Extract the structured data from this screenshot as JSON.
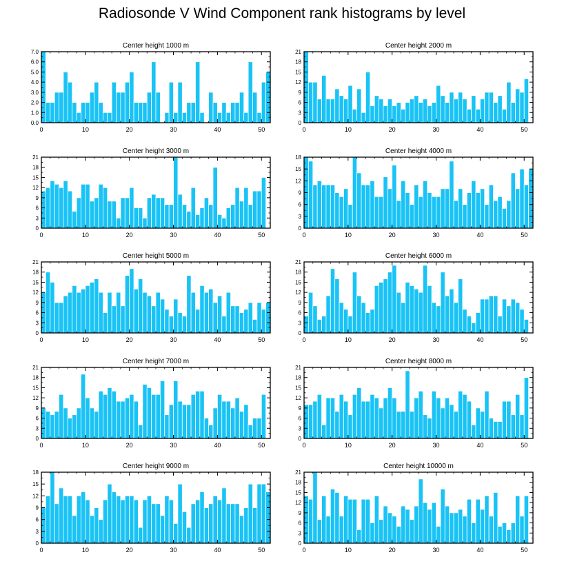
{
  "title": "Radiosonde V Wind Component rank histograms by level",
  "colors": {
    "bar": "#1ac3f5",
    "bar_edge": "#ffffff",
    "axis": "#000000"
  },
  "chart_data": [
    {
      "type": "bar",
      "title": "Center height 1000 m",
      "xlim": [
        0,
        52
      ],
      "ylim": [
        0,
        7
      ],
      "yticks": [
        "0.0",
        "1.0",
        "2.0",
        "3.0",
        "4.0",
        "5.0",
        "6.0",
        "7.0"
      ],
      "xticks": [
        "0",
        "10",
        "20",
        "30",
        "40",
        "50"
      ],
      "values": [
        7,
        2,
        2,
        3,
        3,
        5,
        4,
        2,
        1,
        2,
        2,
        3,
        4,
        2,
        1,
        1,
        4,
        3,
        3,
        4,
        5,
        2,
        2,
        2,
        3,
        6,
        3,
        0,
        1,
        4,
        1,
        4,
        1,
        2,
        2,
        6,
        1,
        0,
        3,
        2,
        1,
        2,
        1,
        2,
        2,
        3,
        1,
        6,
        3,
        1,
        4,
        5
      ]
    },
    {
      "type": "bar",
      "title": "Center height 2000 m",
      "xlim": [
        0,
        52
      ],
      "ylim": [
        0,
        21
      ],
      "yticks": [
        "0",
        "3",
        "6",
        "9",
        "12",
        "15",
        "18",
        "21"
      ],
      "xticks": [
        "0",
        "10",
        "20",
        "30",
        "40",
        "50"
      ],
      "values": [
        21,
        12,
        12,
        7,
        14,
        7,
        7,
        10,
        8,
        7,
        11,
        4,
        10,
        3,
        15,
        5,
        8,
        7,
        5,
        7,
        5,
        6,
        4,
        6,
        7,
        8,
        6,
        7,
        5,
        6,
        11,
        8,
        6,
        9,
        7,
        9,
        7,
        4,
        8,
        4,
        7,
        9,
        9,
        6,
        8,
        4,
        12,
        6,
        10,
        9,
        13
      ]
    },
    {
      "type": "bar",
      "title": "Center height 3000 m",
      "xlim": [
        0,
        52
      ],
      "ylim": [
        0,
        21
      ],
      "yticks": [
        "0",
        "3",
        "6",
        "9",
        "12",
        "15",
        "18",
        "21"
      ],
      "xticks": [
        "0",
        "10",
        "20",
        "30",
        "40",
        "50"
      ],
      "values": [
        11,
        12,
        14,
        13,
        12,
        14,
        11,
        5,
        9,
        13,
        13,
        8,
        9,
        13,
        12,
        8,
        8,
        3,
        9,
        9,
        12,
        6,
        6,
        3,
        9,
        10,
        9,
        9,
        7,
        7,
        21,
        10,
        7,
        5,
        12,
        4,
        6,
        9,
        7,
        18,
        4,
        3,
        6,
        7,
        12,
        8,
        12,
        7,
        11,
        11,
        15
      ]
    },
    {
      "type": "bar",
      "title": "Center height 4000 m",
      "xlim": [
        0,
        52
      ],
      "ylim": [
        0,
        18
      ],
      "yticks": [
        "0",
        "3",
        "6",
        "9",
        "12",
        "15",
        "18"
      ],
      "xticks": [
        "0",
        "10",
        "20",
        "30",
        "40",
        "50"
      ],
      "values": [
        18,
        17,
        11,
        12,
        11,
        11,
        11,
        9,
        8,
        10,
        6,
        18,
        14,
        11,
        11,
        12,
        8,
        8,
        13,
        10,
        16,
        7,
        12,
        9,
        6,
        11,
        8,
        12,
        9,
        8,
        8,
        10,
        10,
        17,
        7,
        10,
        6,
        9,
        12,
        9,
        10,
        6,
        11,
        7,
        8,
        5,
        7,
        14,
        10,
        15,
        11,
        15
      ]
    },
    {
      "type": "bar",
      "title": "Center height 5000 m",
      "xlim": [
        0,
        52
      ],
      "ylim": [
        0,
        21
      ],
      "yticks": [
        "0",
        "3",
        "6",
        "9",
        "12",
        "15",
        "18",
        "21"
      ],
      "xticks": [
        "0",
        "10",
        "20",
        "30",
        "40",
        "50"
      ],
      "values": [
        12,
        18,
        15,
        9,
        9,
        11,
        12,
        14,
        12,
        13,
        14,
        15,
        16,
        12,
        6,
        12,
        8,
        12,
        8,
        17,
        19,
        13,
        16,
        12,
        11,
        8,
        12,
        10,
        7,
        5,
        10,
        6,
        5,
        17,
        12,
        7,
        14,
        12,
        13,
        9,
        11,
        5,
        12,
        8,
        8,
        6,
        7,
        9,
        4,
        9,
        7,
        9
      ]
    },
    {
      "type": "bar",
      "title": "Center height 6000 m",
      "xlim": [
        0,
        52
      ],
      "ylim": [
        0,
        21
      ],
      "yticks": [
        "0",
        "3",
        "6",
        "9",
        "12",
        "15",
        "18",
        "21"
      ],
      "xticks": [
        "0",
        "10",
        "20",
        "30",
        "40",
        "50"
      ],
      "values": [
        5,
        12,
        8,
        4,
        5,
        11,
        19,
        16,
        9,
        7,
        5,
        18,
        11,
        9,
        6,
        7,
        14,
        15,
        16,
        18,
        20,
        12,
        9,
        15,
        14,
        13,
        12,
        20,
        14,
        9,
        8,
        18,
        11,
        13,
        9,
        16,
        7,
        5,
        3,
        6,
        10,
        10,
        11,
        11,
        5,
        10,
        8,
        10,
        9,
        7,
        4
      ]
    },
    {
      "type": "bar",
      "title": "Center height 7000 m",
      "xlim": [
        0,
        52
      ],
      "ylim": [
        0,
        21
      ],
      "yticks": [
        "0",
        "3",
        "6",
        "9",
        "12",
        "15",
        "18",
        "21"
      ],
      "xticks": [
        "0",
        "10",
        "20",
        "30",
        "40",
        "50"
      ],
      "values": [
        9,
        8,
        7,
        8,
        13,
        9,
        6,
        7,
        9,
        19,
        12,
        9,
        8,
        14,
        13,
        15,
        14,
        11,
        11,
        12,
        13,
        11,
        4,
        16,
        15,
        13,
        13,
        17,
        7,
        10,
        17,
        11,
        10,
        10,
        13,
        14,
        14,
        6,
        4,
        9,
        13,
        11,
        11,
        9,
        12,
        8,
        10,
        4,
        6,
        6,
        13
      ]
    },
    {
      "type": "bar",
      "title": "Center height 8000 m",
      "xlim": [
        0,
        52
      ],
      "ylim": [
        0,
        21
      ],
      "yticks": [
        "0",
        "3",
        "6",
        "9",
        "12",
        "15",
        "18",
        "21"
      ],
      "xticks": [
        "0",
        "10",
        "20",
        "30",
        "40",
        "50"
      ],
      "values": [
        10,
        10,
        11,
        13,
        4,
        12,
        12,
        8,
        13,
        11,
        7,
        13,
        15,
        11,
        11,
        13,
        12,
        9,
        12,
        15,
        12,
        8,
        8,
        20,
        8,
        12,
        14,
        7,
        6,
        14,
        12,
        9,
        12,
        10,
        8,
        14,
        13,
        11,
        4,
        9,
        8,
        14,
        6,
        5,
        5,
        11,
        11,
        7,
        13,
        7,
        18
      ]
    },
    {
      "type": "bar",
      "title": "Center height 9000 m",
      "xlim": [
        0,
        52
      ],
      "ylim": [
        0,
        18
      ],
      "yticks": [
        "0",
        "3",
        "6",
        "9",
        "12",
        "15",
        "18"
      ],
      "xticks": [
        "0",
        "10",
        "20",
        "30",
        "40",
        "50"
      ],
      "values": [
        9,
        12,
        18,
        10,
        14,
        12,
        12,
        7,
        12,
        13,
        11,
        7,
        9,
        6,
        11,
        15,
        13,
        12,
        11,
        12,
        12,
        11,
        4,
        11,
        12,
        10,
        10,
        7,
        12,
        11,
        5,
        15,
        8,
        4,
        10,
        11,
        13,
        9,
        10,
        12,
        11,
        14,
        10,
        10,
        10,
        7,
        9,
        15,
        9,
        15,
        15,
        13
      ]
    },
    {
      "type": "bar",
      "title": "Center height 10000 m",
      "xlim": [
        0,
        52
      ],
      "ylim": [
        0,
        21
      ],
      "yticks": [
        "0",
        "3",
        "6",
        "9",
        "12",
        "15",
        "18",
        "21"
      ],
      "xticks": [
        "0",
        "10",
        "20",
        "30",
        "40",
        "50"
      ],
      "values": [
        14,
        13,
        21,
        7,
        14,
        8,
        16,
        15,
        8,
        14,
        13,
        13,
        4,
        13,
        13,
        6,
        14,
        7,
        11,
        9,
        8,
        5,
        11,
        10,
        7,
        11,
        19,
        12,
        10,
        12,
        5,
        16,
        11,
        9,
        9,
        10,
        8,
        13,
        6,
        13,
        10,
        14,
        8,
        15,
        5,
        6,
        4,
        6,
        14,
        8,
        14
      ]
    }
  ]
}
